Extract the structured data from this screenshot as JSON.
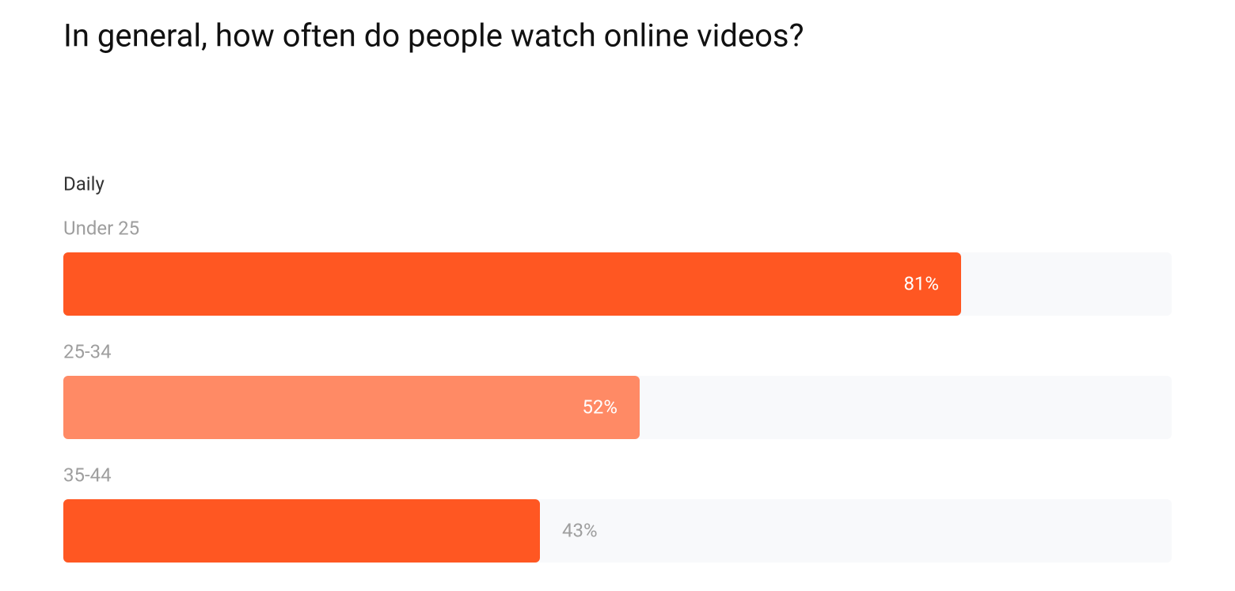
{
  "chart_data": {
    "type": "bar",
    "orientation": "horizontal",
    "title": "In general, how often do people watch online videos?",
    "subtitle": "Daily",
    "categories": [
      "Under 25",
      "25-34",
      "35-44"
    ],
    "values": [
      81,
      52,
      43
    ],
    "value_labels": [
      "81%",
      "52%",
      "43%"
    ],
    "value_label_positions": [
      "inside",
      "inside",
      "outside"
    ],
    "colors": [
      "#ff5722",
      "#ff8a65",
      "#ff5722"
    ],
    "track_color": "#f8f9fb",
    "xlim": [
      0,
      100
    ]
  }
}
